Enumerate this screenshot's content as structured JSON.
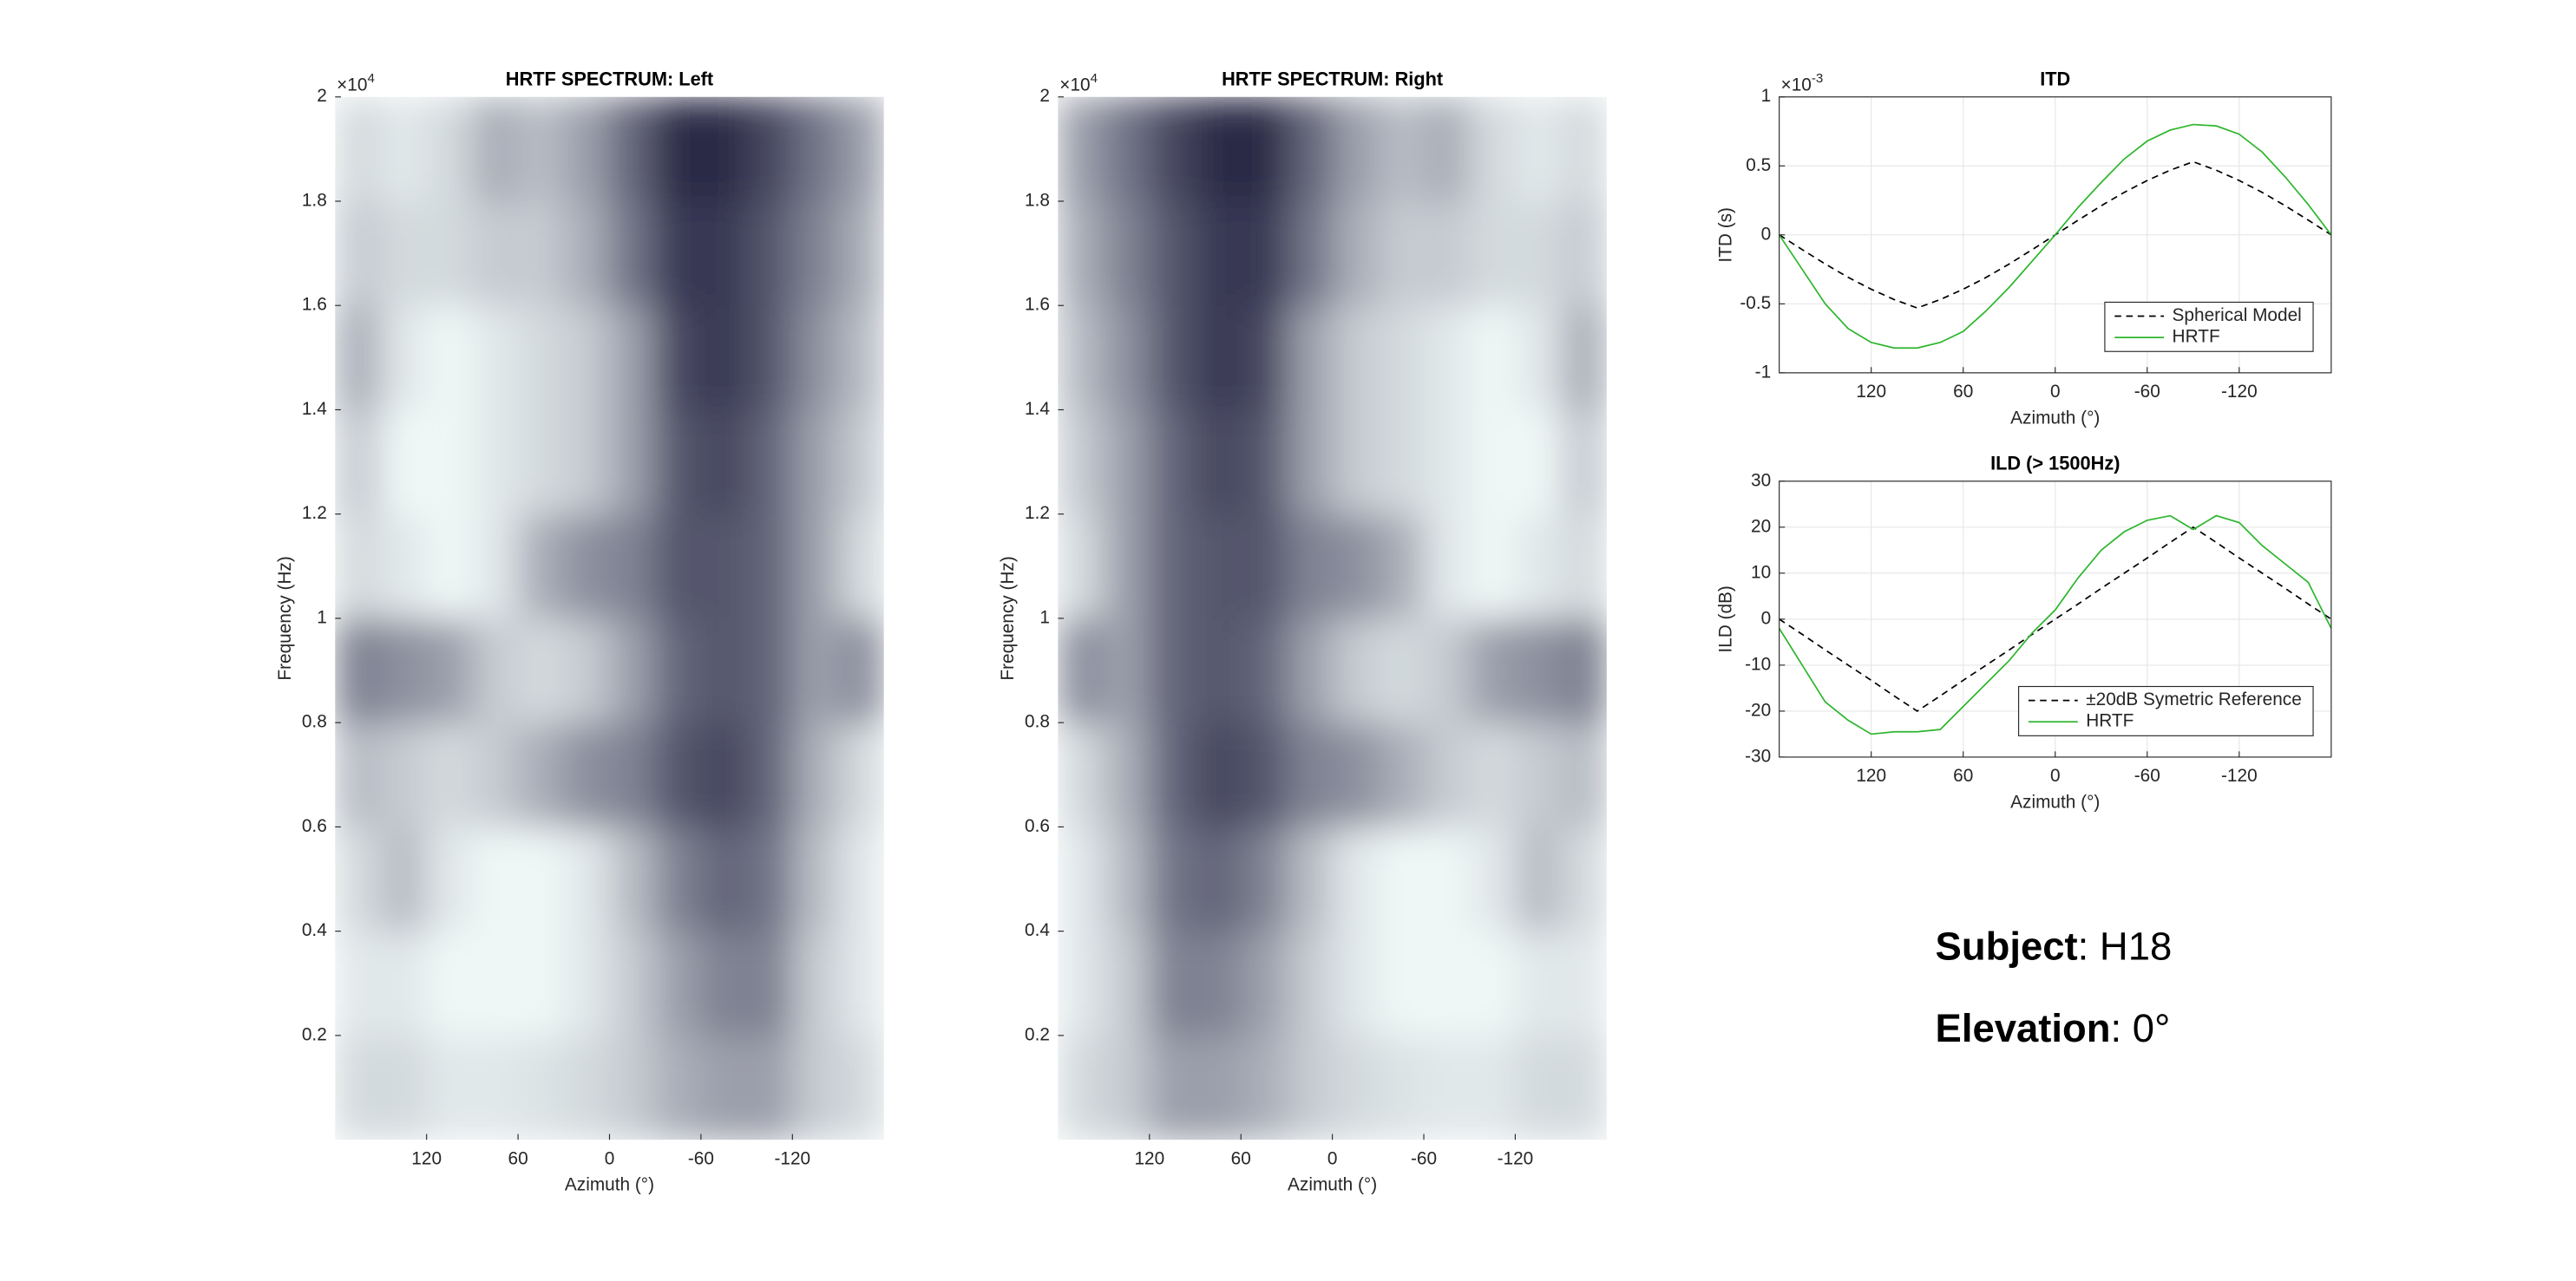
{
  "chart_data": [
    {
      "type": "heatmap",
      "title": "HRTF SPECTRUM: Left",
      "xlabel": "Azimuth (°)",
      "ylabel": "Frequency (Hz)",
      "xlim": [
        180,
        -180
      ],
      "xticks": [
        120,
        60,
        0,
        -60,
        -120
      ],
      "ylim": [
        0,
        20000
      ],
      "yticks": [
        {
          "value": 2000,
          "label": "0.2"
        },
        {
          "value": 4000,
          "label": "0.4"
        },
        {
          "value": 6000,
          "label": "0.6"
        },
        {
          "value": 8000,
          "label": "0.8"
        },
        {
          "value": 10000,
          "label": "1"
        },
        {
          "value": 12000,
          "label": "1.2"
        },
        {
          "value": 14000,
          "label": "1.4"
        },
        {
          "value": 16000,
          "label": "1.6"
        },
        {
          "value": 18000,
          "label": "1.8"
        },
        {
          "value": 20000,
          "label": "2"
        }
      ],
      "yexponent": {
        "base": "×10",
        "power": "4"
      },
      "colormap": [
        "#eff7f6",
        "#2b2a47"
      ],
      "z": [
        [
          0.15,
          0.15,
          0.1,
          0.1,
          0.12,
          0.15,
          0.2,
          0.3,
          0.35,
          0.35,
          0.2,
          0.15
        ],
        [
          0.1,
          0.1,
          0.05,
          0.05,
          0.05,
          0.1,
          0.2,
          0.35,
          0.45,
          0.45,
          0.2,
          0.1
        ],
        [
          0.15,
          0.25,
          0.1,
          0.05,
          0.05,
          0.1,
          0.25,
          0.45,
          0.55,
          0.5,
          0.25,
          0.1
        ],
        [
          0.25,
          0.2,
          0.15,
          0.2,
          0.3,
          0.4,
          0.45,
          0.6,
          0.65,
          0.55,
          0.3,
          0.15
        ],
        [
          0.45,
          0.4,
          0.35,
          0.2,
          0.15,
          0.2,
          0.35,
          0.55,
          0.6,
          0.55,
          0.35,
          0.4
        ],
        [
          0.15,
          0.1,
          0.05,
          0.1,
          0.3,
          0.4,
          0.45,
          0.6,
          0.6,
          0.55,
          0.35,
          0.15
        ],
        [
          0.2,
          0.05,
          0.05,
          0.1,
          0.15,
          0.2,
          0.35,
          0.6,
          0.65,
          0.55,
          0.35,
          0.2
        ],
        [
          0.3,
          0.1,
          0.05,
          0.1,
          0.15,
          0.2,
          0.35,
          0.65,
          0.7,
          0.6,
          0.4,
          0.25
        ],
        [
          0.2,
          0.15,
          0.15,
          0.2,
          0.2,
          0.3,
          0.5,
          0.7,
          0.7,
          0.6,
          0.45,
          0.3
        ],
        [
          0.15,
          0.1,
          0.15,
          0.3,
          0.25,
          0.35,
          0.55,
          0.75,
          0.75,
          0.65,
          0.5,
          0.35
        ]
      ]
    },
    {
      "type": "heatmap",
      "title": "HRTF SPECTRUM: Right",
      "xlabel": "Azimuth (°)",
      "ylabel": "Frequency (Hz)",
      "xlim": [
        180,
        -180
      ],
      "xticks": [
        120,
        60,
        0,
        -60,
        -120
      ],
      "ylim": [
        0,
        20000
      ],
      "yticks": [
        {
          "value": 2000,
          "label": "0.2"
        },
        {
          "value": 4000,
          "label": "0.4"
        },
        {
          "value": 6000,
          "label": "0.6"
        },
        {
          "value": 8000,
          "label": "0.8"
        },
        {
          "value": 10000,
          "label": "1"
        },
        {
          "value": 12000,
          "label": "1.2"
        },
        {
          "value": 14000,
          "label": "1.4"
        },
        {
          "value": 16000,
          "label": "1.6"
        },
        {
          "value": 18000,
          "label": "1.8"
        },
        {
          "value": 20000,
          "label": "2"
        }
      ],
      "yexponent": {
        "base": "×10",
        "power": "4"
      },
      "colormap": [
        "#eff7f6",
        "#2b2a47"
      ],
      "z": [
        [
          0.15,
          0.2,
          0.35,
          0.35,
          0.3,
          0.2,
          0.15,
          0.12,
          0.1,
          0.1,
          0.15,
          0.15
        ],
        [
          0.1,
          0.2,
          0.45,
          0.45,
          0.35,
          0.2,
          0.1,
          0.05,
          0.05,
          0.05,
          0.1,
          0.1
        ],
        [
          0.1,
          0.25,
          0.5,
          0.55,
          0.45,
          0.25,
          0.1,
          0.05,
          0.05,
          0.1,
          0.25,
          0.15
        ],
        [
          0.15,
          0.3,
          0.55,
          0.65,
          0.6,
          0.45,
          0.4,
          0.3,
          0.2,
          0.15,
          0.2,
          0.25
        ],
        [
          0.4,
          0.35,
          0.55,
          0.6,
          0.55,
          0.35,
          0.2,
          0.15,
          0.2,
          0.35,
          0.4,
          0.45
        ],
        [
          0.15,
          0.35,
          0.55,
          0.6,
          0.6,
          0.45,
          0.4,
          0.3,
          0.1,
          0.05,
          0.1,
          0.15
        ],
        [
          0.2,
          0.35,
          0.55,
          0.65,
          0.6,
          0.35,
          0.2,
          0.15,
          0.1,
          0.05,
          0.05,
          0.2
        ],
        [
          0.25,
          0.4,
          0.6,
          0.7,
          0.65,
          0.35,
          0.2,
          0.15,
          0.1,
          0.05,
          0.1,
          0.3
        ],
        [
          0.3,
          0.45,
          0.6,
          0.7,
          0.7,
          0.5,
          0.3,
          0.2,
          0.2,
          0.15,
          0.15,
          0.2
        ],
        [
          0.35,
          0.5,
          0.65,
          0.75,
          0.75,
          0.55,
          0.35,
          0.25,
          0.3,
          0.15,
          0.1,
          0.15
        ]
      ]
    },
    {
      "type": "line",
      "title": "ITD",
      "xlabel": "Azimuth (°)",
      "ylabel": "ITD (s)",
      "grid": true,
      "legend_loc": "lower right",
      "x": [
        180,
        165,
        150,
        135,
        120,
        105,
        90,
        75,
        60,
        45,
        30,
        15,
        0,
        -15,
        -30,
        -45,
        -60,
        -75,
        -90,
        -105,
        -120,
        -135,
        -150,
        -165,
        -180
      ],
      "xlim": [
        180,
        -180
      ],
      "xticks": [
        120,
        60,
        0,
        -60,
        -120
      ],
      "ylim": [
        -0.001,
        0.001
      ],
      "yticks": [
        {
          "value": -0.001,
          "label": "-1"
        },
        {
          "value": -0.0005,
          "label": "-0.5"
        },
        0,
        {
          "value": 0.0005,
          "label": "0.5"
        },
        {
          "value": 0.001,
          "label": "1"
        }
      ],
      "yexponent": {
        "base": "×10",
        "power": "-3"
      },
      "series": [
        {
          "name": "Spherical Model",
          "color": "#000000",
          "style": "dashed",
          "values": [
            0,
            -0.000107,
            -0.000211,
            -0.000308,
            -0.000394,
            -0.000469,
            -0.00053,
            -0.000469,
            -0.000394,
            -0.000308,
            -0.000211,
            -0.000107,
            0,
            0.000107,
            0.000211,
            0.000308,
            0.000394,
            0.000469,
            0.00053,
            0.000469,
            0.000394,
            0.000308,
            0.000211,
            0.000107,
            0
          ]
        },
        {
          "name": "HRTF",
          "color": "#2db52d",
          "style": "solid",
          "values": [
            0,
            -0.00025,
            -0.0005,
            -0.00068,
            -0.00078,
            -0.00082,
            -0.00082,
            -0.00078,
            -0.0007,
            -0.00055,
            -0.00038,
            -0.00019,
            0,
            0.0002,
            0.00038,
            0.00055,
            0.00068,
            0.00076,
            0.0008,
            0.00079,
            0.00073,
            0.0006,
            0.00042,
            0.00022,
            0
          ]
        }
      ]
    },
    {
      "type": "line",
      "title": "ILD (> 1500Hz)",
      "xlabel": "Azimuth (°)",
      "ylabel": "ILD (dB)",
      "grid": true,
      "legend_loc": "lower right",
      "x": [
        180,
        165,
        150,
        135,
        120,
        105,
        90,
        75,
        60,
        45,
        30,
        15,
        0,
        -15,
        -30,
        -45,
        -60,
        -75,
        -90,
        -105,
        -120,
        -135,
        -150,
        -165,
        -180
      ],
      "xlim": [
        180,
        -180
      ],
      "xticks": [
        120,
        60,
        0,
        -60,
        -120
      ],
      "ylim": [
        -30,
        30
      ],
      "yticks": [
        -30,
        -20,
        -10,
        0,
        10,
        20,
        30
      ],
      "series": [
        {
          "name": "±20dB Symetric Reference",
          "color": "#000000",
          "style": "dashed",
          "values": [
            0,
            -3.3,
            -6.7,
            -10,
            -13.3,
            -16.7,
            -20,
            -16.7,
            -13.3,
            -10,
            -6.7,
            -3.3,
            0,
            3.3,
            6.7,
            10,
            13.3,
            16.7,
            20,
            16.7,
            13.3,
            10,
            6.7,
            3.3,
            0
          ]
        },
        {
          "name": "HRTF",
          "color": "#2db52d",
          "style": "solid",
          "values": [
            -2,
            -10,
            -18,
            -22,
            -25,
            -24.5,
            -24.5,
            -24,
            -19,
            -14,
            -9,
            -3,
            2,
            9,
            15,
            19,
            21.5,
            22.5,
            19.5,
            22.5,
            21,
            16,
            12,
            8,
            -2
          ]
        }
      ]
    }
  ],
  "info": [
    {
      "label": "Subject",
      "text": ": H18"
    },
    {
      "label": "Elevation",
      "text": ": 0°"
    }
  ]
}
